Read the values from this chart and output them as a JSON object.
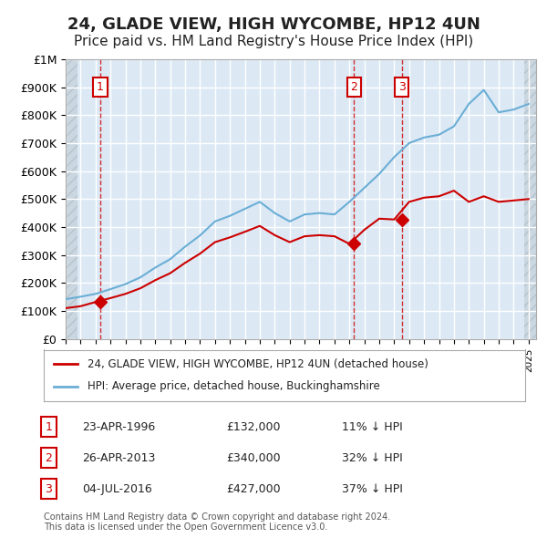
{
  "title": "24, GLADE VIEW, HIGH WYCOMBE, HP12 4UN",
  "subtitle": "Price paid vs. HM Land Registry's House Price Index (HPI)",
  "title_fontsize": 13,
  "subtitle_fontsize": 11,
  "background_color": "#ffffff",
  "plot_bg_color": "#dce9f5",
  "hatch_color": "#c0c8d0",
  "grid_color": "#ffffff",
  "ylim": [
    0,
    1000000
  ],
  "xlim": [
    1994,
    2025.5
  ],
  "yticks": [
    0,
    100000,
    200000,
    300000,
    400000,
    500000,
    600000,
    700000,
    800000,
    900000,
    1000000
  ],
  "ytick_labels": [
    "£0",
    "£100K",
    "£200K",
    "£300K",
    "£400K",
    "£500K",
    "£600K",
    "£700K",
    "£800K",
    "£900K",
    "£1M"
  ],
  "transactions": [
    {
      "date_label": "23-APR-1996",
      "year": 1996.31,
      "price": 132000,
      "num": "1",
      "hpi_pct": "11% ↓ HPI"
    },
    {
      "date_label": "26-APR-2013",
      "year": 2013.32,
      "price": 340000,
      "num": "2",
      "hpi_pct": "32% ↓ HPI"
    },
    {
      "date_label": "04-JUL-2016",
      "year": 2016.51,
      "price": 427000,
      "num": "3",
      "hpi_pct": "37% ↓ HPI"
    }
  ],
  "hpi_line_color": "#6baed6",
  "price_line_color": "#cc0000",
  "marker_color": "#cc0000",
  "vline_color": "#cc0000",
  "box_color": "#cc0000",
  "legend_label_red": "24, GLADE VIEW, HIGH WYCOMBE, HP12 4UN (detached house)",
  "legend_label_blue": "HPI: Average price, detached house, Buckinghamshire",
  "footnote": "Contains HM Land Registry data © Crown copyright and database right 2024.\nThis data is licensed under the Open Government Licence v3.0.",
  "hpi_years": [
    1994,
    1995,
    1996,
    1997,
    1998,
    1999,
    2000,
    2001,
    2002,
    2003,
    2004,
    2005,
    2006,
    2007,
    2008,
    2009,
    2010,
    2011,
    2012,
    2013,
    2014,
    2015,
    2016,
    2017,
    2018,
    2019,
    2020,
    2021,
    2022,
    2023,
    2024,
    2025
  ],
  "hpi_values": [
    142000,
    151000,
    161000,
    178000,
    196000,
    220000,
    255000,
    285000,
    330000,
    370000,
    420000,
    440000,
    465000,
    490000,
    450000,
    420000,
    445000,
    450000,
    445000,
    490000,
    540000,
    590000,
    650000,
    700000,
    720000,
    730000,
    760000,
    840000,
    890000,
    810000,
    820000,
    840000
  ],
  "price_years": [
    1994,
    1995,
    1996,
    1997,
    1998,
    1999,
    2000,
    2001,
    2002,
    2003,
    2004,
    2005,
    2006,
    2007,
    2008,
    2009,
    2010,
    2011,
    2012,
    2013,
    2014,
    2015,
    2016,
    2017,
    2018,
    2019,
    2020,
    2021,
    2022,
    2023,
    2024,
    2025
  ],
  "price_values": [
    110000,
    117000,
    132000,
    146000,
    161000,
    181000,
    210000,
    235000,
    272000,
    305000,
    346000,
    363000,
    383000,
    404000,
    371000,
    346000,
    367000,
    371000,
    367000,
    340000,
    390000,
    430000,
    427000,
    490000,
    505000,
    510000,
    530000,
    490000,
    510000,
    490000,
    495000,
    500000
  ]
}
